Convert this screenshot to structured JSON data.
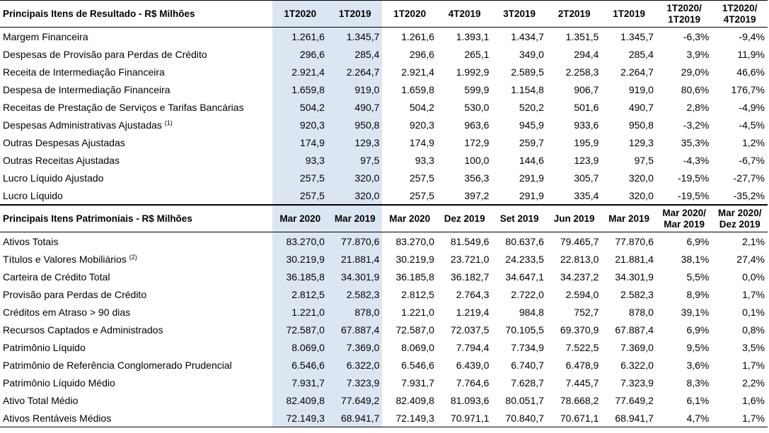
{
  "section1": {
    "header": [
      "Principais Itens de Resultado - R$ Milhões",
      "1T2020",
      "1T2019",
      "1T2020",
      "4T2019",
      "3T2019",
      "2T2019",
      "1T2019",
      "1T2020/\n1T2019",
      "1T2020/\n4T2019"
    ],
    "rows": [
      {
        "label": "Margem Financeira",
        "values": [
          "1.261,6",
          "1.345,7",
          "1.261,6",
          "1.393,1",
          "1.434,7",
          "1.351,5",
          "1.345,7",
          "-6,3%",
          "-9,4%"
        ]
      },
      {
        "label": "Despesas de Provisão para Perdas de Crédito",
        "values": [
          "296,6",
          "285,4",
          "296,6",
          "265,1",
          "349,0",
          "294,4",
          "285,4",
          "3,9%",
          "11,9%"
        ]
      },
      {
        "label": "Receita de Intermediação Financeira",
        "values": [
          "2.921,4",
          "2.264,7",
          "2.921,4",
          "1.992,9",
          "2.589,5",
          "2.258,3",
          "2.264,7",
          "29,0%",
          "46,6%"
        ]
      },
      {
        "label": "Despesa de Intermediação Financeira",
        "values": [
          "1.659,8",
          "919,0",
          "1.659,8",
          "599,9",
          "1.154,8",
          "906,7",
          "919,0",
          "80,6%",
          "176,7%"
        ]
      },
      {
        "label": "Receitas de Prestação de Serviços e Tarifas Bancárias",
        "values": [
          "504,2",
          "490,7",
          "504,2",
          "530,0",
          "520,2",
          "501,6",
          "490,7",
          "2,8%",
          "-4,9%"
        ]
      },
      {
        "label": "Despesas Administrativas Ajustadas",
        "sup": "(1)",
        "values": [
          "920,3",
          "950,8",
          "920,3",
          "963,6",
          "945,9",
          "933,6",
          "950,8",
          "-3,2%",
          "-4,5%"
        ]
      },
      {
        "label": "Outras Despesas Ajustadas",
        "values": [
          "174,9",
          "129,3",
          "174,9",
          "172,9",
          "259,7",
          "195,9",
          "129,3",
          "35,3%",
          "1,2%"
        ]
      },
      {
        "label": "Outras Receitas Ajustadas",
        "values": [
          "93,3",
          "97,5",
          "93,3",
          "100,0",
          "144,6",
          "123,9",
          "97,5",
          "-4,3%",
          "-6,7%"
        ]
      },
      {
        "label": "Lucro Líquido Ajustado",
        "values": [
          "257,5",
          "320,0",
          "257,5",
          "356,3",
          "291,9",
          "305,7",
          "320,0",
          "-19,5%",
          "-27,7%"
        ]
      },
      {
        "label": "Lucro Líquido",
        "values": [
          "257,5",
          "320,0",
          "257,5",
          "397,2",
          "291,9",
          "335,4",
          "320,0",
          "-19,5%",
          "-35,2%"
        ]
      }
    ]
  },
  "section2": {
    "header": [
      "Principais Itens Patrimoniais - R$ Milhões",
      "Mar 2020",
      "Mar 2019",
      "Mar 2020",
      "Dez 2019",
      "Set 2019",
      "Jun 2019",
      "Mar 2019",
      "Mar 2020/\nMar 2019",
      "Mar 2020/\nDez 2019"
    ],
    "rows": [
      {
        "label": "Ativos Totais",
        "values": [
          "83.270,0",
          "77.870,6",
          "83.270,0",
          "81.549,6",
          "80.637,6",
          "79.465,7",
          "77.870,6",
          "6,9%",
          "2,1%"
        ]
      },
      {
        "label": "Títulos e Valores Mobiliários",
        "sup": "(2)",
        "values": [
          "30.219,9",
          "21.881,4",
          "30.219,9",
          "23.721,0",
          "24.233,5",
          "22.813,0",
          "21.881,4",
          "38,1%",
          "27,4%"
        ]
      },
      {
        "label": "Carteira de Crédito Total",
        "values": [
          "36.185,8",
          "34.301,9",
          "36.185,8",
          "36.182,7",
          "34.647,1",
          "34.237,2",
          "34.301,9",
          "5,5%",
          "0,0%"
        ]
      },
      {
        "label": "Provisão para Perdas de Crédito",
        "values": [
          "2.812,5",
          "2.582,3",
          "2.812,5",
          "2.764,3",
          "2.722,0",
          "2.594,0",
          "2.582,3",
          "8,9%",
          "1,7%"
        ]
      },
      {
        "label": "Créditos em Atraso > 90 dias",
        "values": [
          "1.221,0",
          "878,0",
          "1.221,0",
          "1.219,4",
          "984,8",
          "752,7",
          "878,0",
          "39,1%",
          "0,1%"
        ]
      },
      {
        "label": "Recursos Captados e Administrados",
        "values": [
          "72.587,0",
          "67.887,4",
          "72.587,0",
          "72.037,5",
          "70.105,5",
          "69.370,9",
          "67.887,4",
          "6,9%",
          "0,8%"
        ]
      },
      {
        "label": "Patrimônio Líquido",
        "values": [
          "8.069,0",
          "7.369,0",
          "8.069,0",
          "7.794,4",
          "7.734,9",
          "7.522,5",
          "7.369,0",
          "9,5%",
          "3,5%"
        ]
      },
      {
        "label": "Patrimônio de Referência Conglomerado Prudencial",
        "values": [
          "6.546,6",
          "6.322,0",
          "6.546,6",
          "6.439,0",
          "6.740,7",
          "6.478,9",
          "6.322,0",
          "3,6%",
          "1,7%"
        ]
      },
      {
        "label": "Patrimônio Líquido Médio",
        "values": [
          "7.931,7",
          "7.323,9",
          "7.931,7",
          "7.764,6",
          "7.628,7",
          "7.445,7",
          "7.323,9",
          "8,3%",
          "2,2%"
        ]
      },
      {
        "label": "Ativo Total Médio",
        "values": [
          "82.409,8",
          "77.649,2",
          "82.409,8",
          "81.093,6",
          "80.051,7",
          "78.668,2",
          "77.649,2",
          "6,1%",
          "1,6%"
        ]
      },
      {
        "label": "Ativos Rentáveis Médios",
        "values": [
          "72.149,3",
          "68.941,7",
          "72.149,3",
          "70.971,1",
          "70.840,7",
          "70.671,1",
          "68.941,7",
          "4,7%",
          "1,7%"
        ]
      }
    ]
  }
}
